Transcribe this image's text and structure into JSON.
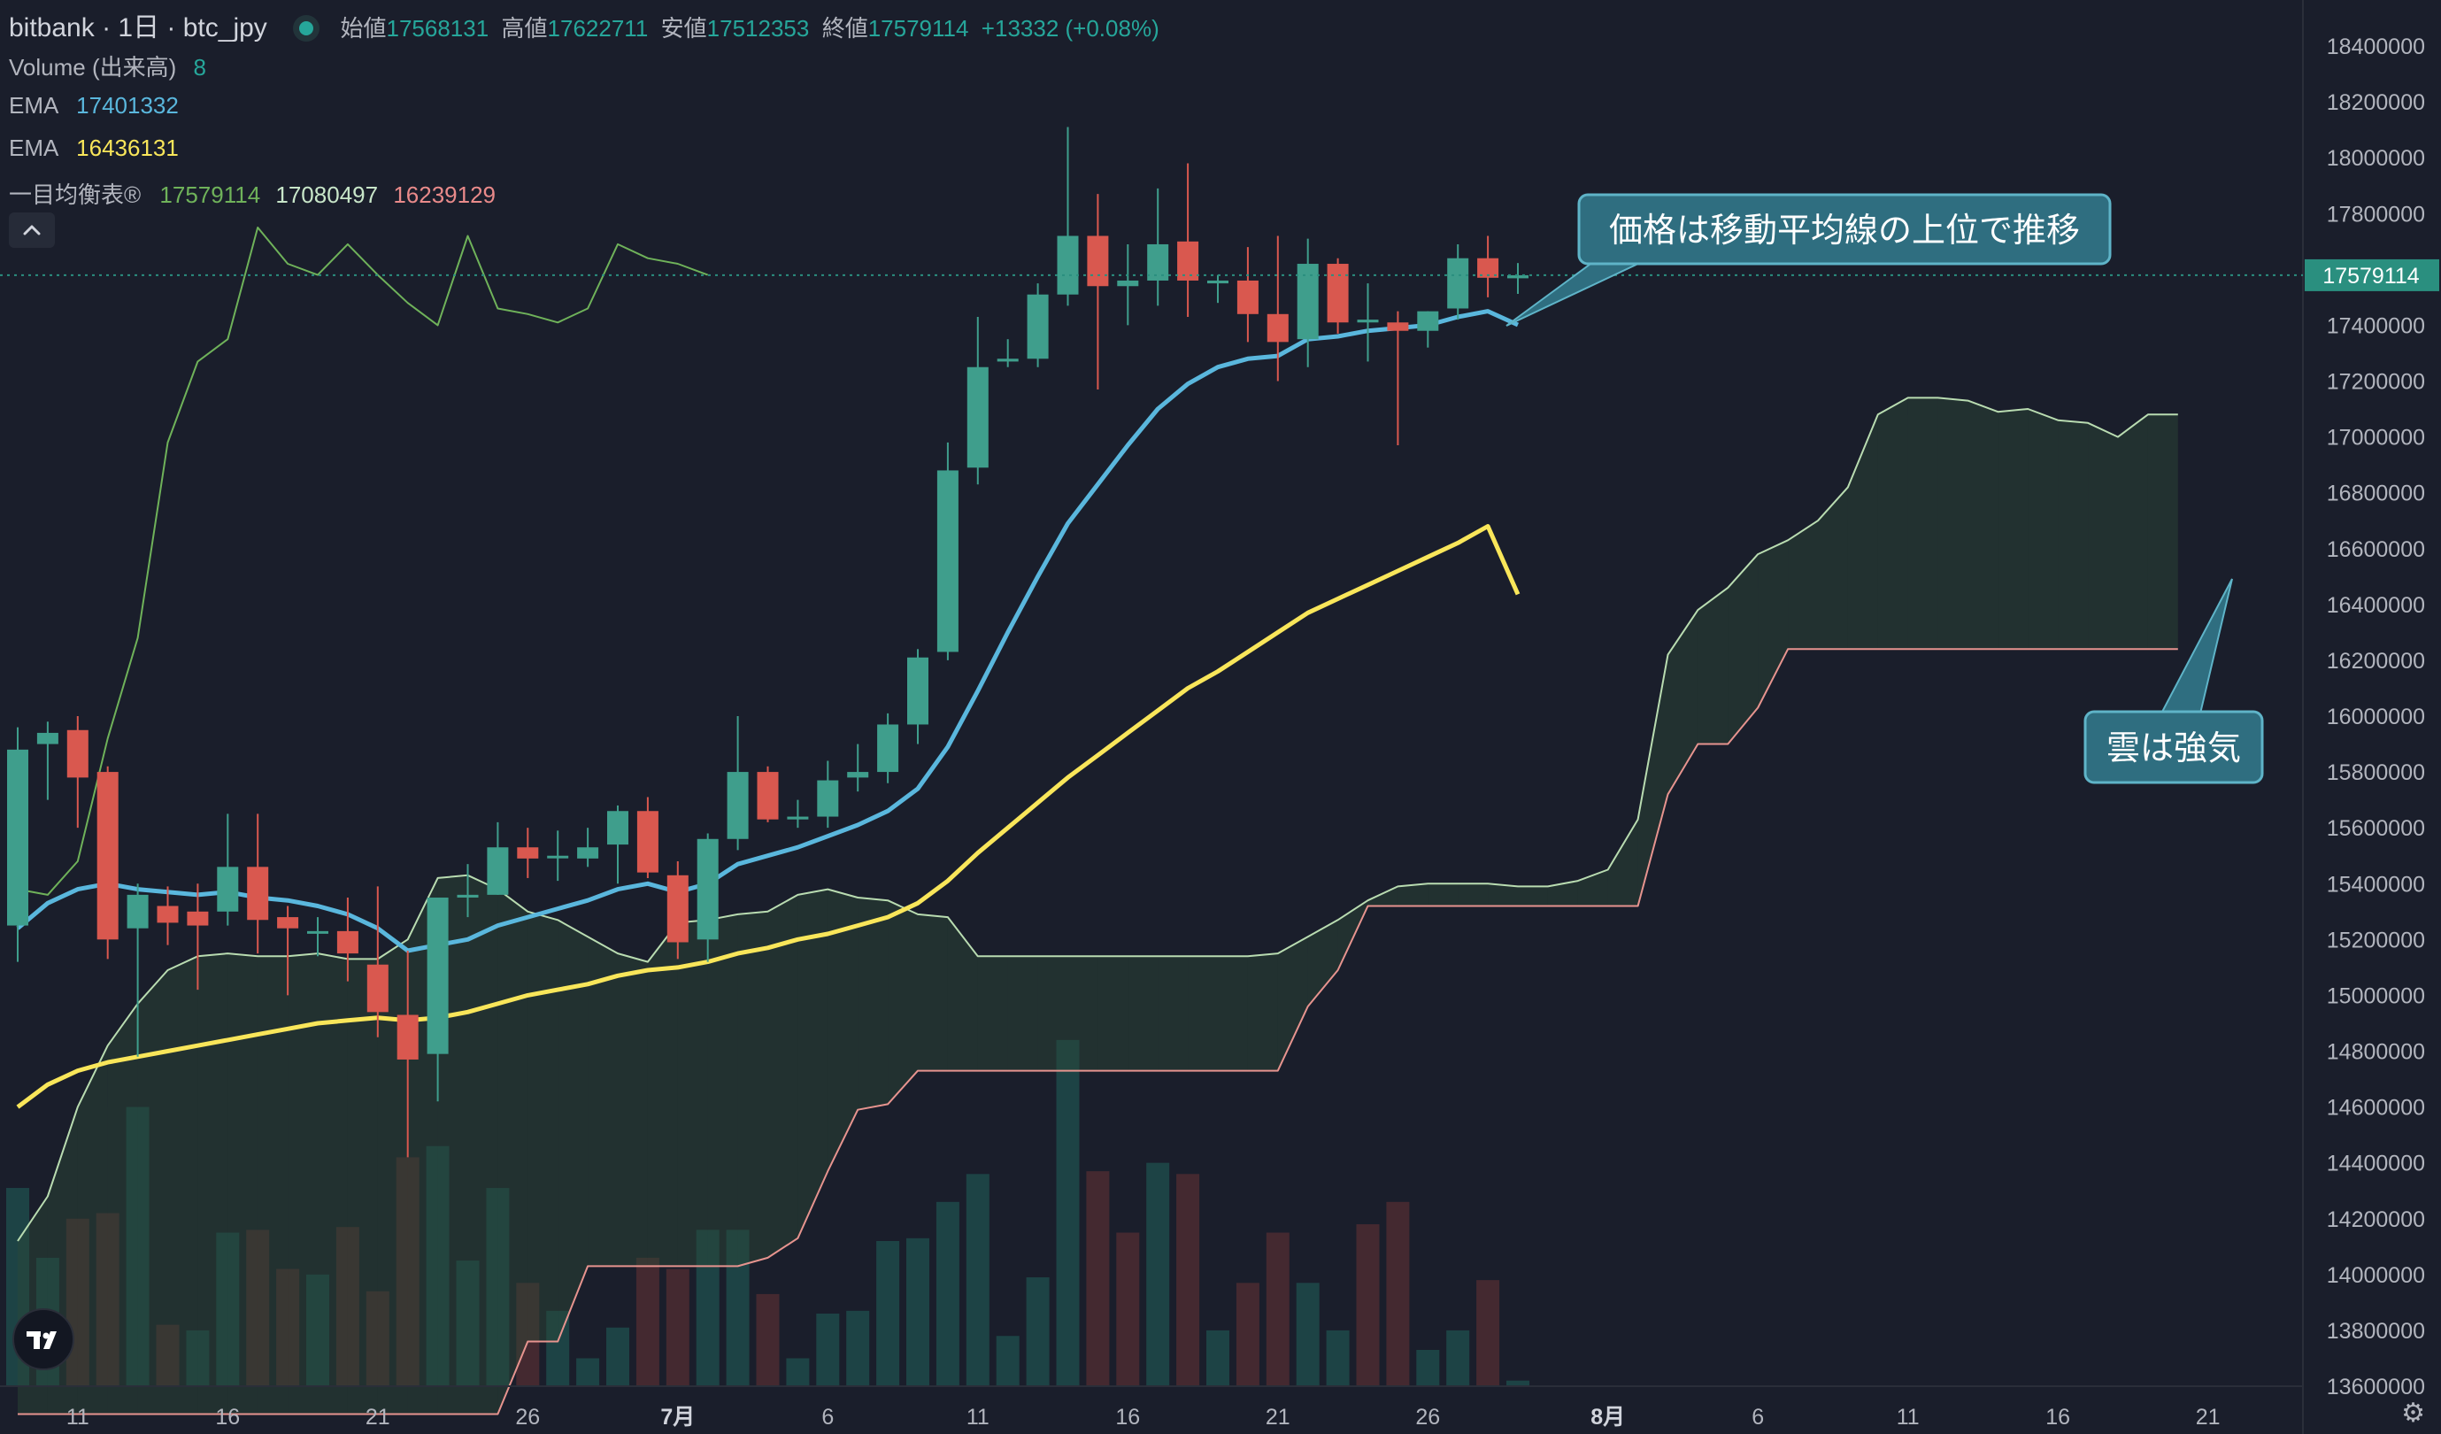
{
  "header": {
    "symbol_title": "bitbank · 1日 · btc_jpy",
    "status_dot_color": "#26a69a",
    "ohlc": [
      {
        "label": "始値",
        "value": "17568131"
      },
      {
        "label": "高値",
        "value": "17622711"
      },
      {
        "label": "安値",
        "value": "17512353"
      },
      {
        "label": "終値",
        "value": "17579114"
      }
    ],
    "change": "+13332 (+0.08%)"
  },
  "indicators": {
    "volume": {
      "label": "Volume (出来高)",
      "value": "8"
    },
    "ema1": {
      "label": "EMA",
      "value": "17401332",
      "color": "#5ab7dd"
    },
    "ema2": {
      "label": "EMA",
      "value": "16436131",
      "color": "#f9e65a"
    },
    "ichimoku": {
      "label": "一目均衡表®",
      "values": [
        "17579114",
        "17080497",
        "16239129"
      ],
      "colors": [
        "#6fb25a",
        "#c8e6c9",
        "#e98a8a"
      ]
    }
  },
  "annotations": [
    {
      "text": "価格は移動平均線の上位で推移"
    },
    {
      "text": "雲は強気"
    }
  ],
  "colors": {
    "background": "#1a1e2b",
    "up": "#3f9e8c",
    "down": "#d9584f",
    "ema1": "#5ab7dd",
    "ema2": "#f9e65a",
    "lagging_span": "#6fb25a",
    "span_a": "#b9dcb1",
    "span_b": "#e7948f",
    "callout_bg": "#2f6e80",
    "callout_border": "#5fb4c8",
    "price_tag": "#2a8f7f"
  },
  "chart_data": {
    "type": "candlestick",
    "y_ticks": [
      13600000,
      13800000,
      14000000,
      14200000,
      14400000,
      14600000,
      14800000,
      15000000,
      15200000,
      15400000,
      15600000,
      15800000,
      16000000,
      16200000,
      16400000,
      16600000,
      16800000,
      17000000,
      17200000,
      17400000,
      17600000,
      17800000,
      18000000,
      18200000,
      18400000
    ],
    "last_price_label": "17579114",
    "x_tick_labels": [
      {
        "label": "11",
        "bar": 2
      },
      {
        "label": "16",
        "bar": 7
      },
      {
        "label": "21",
        "bar": 12
      },
      {
        "label": "26",
        "bar": 17
      },
      {
        "label": "7月",
        "bar": 22
      },
      {
        "label": "6",
        "bar": 27
      },
      {
        "label": "11",
        "bar": 32
      },
      {
        "label": "16",
        "bar": 37
      },
      {
        "label": "21",
        "bar": 42
      },
      {
        "label": "26",
        "bar": 47
      },
      {
        "label": "8月",
        "bar": 53
      },
      {
        "label": "6",
        "bar": 58
      },
      {
        "label": "11",
        "bar": 63
      },
      {
        "label": "16",
        "bar": 68
      },
      {
        "label": "21",
        "bar": 73
      }
    ],
    "ohlc": [
      [
        15250000,
        15960000,
        15120000,
        15880000
      ],
      [
        15900000,
        15980000,
        15700000,
        15940000
      ],
      [
        15950000,
        16000000,
        15600000,
        15780000
      ],
      [
        15800000,
        15820000,
        15130000,
        15200000
      ],
      [
        15240000,
        15400000,
        14780000,
        15360000
      ],
      [
        15320000,
        15390000,
        15180000,
        15260000
      ],
      [
        15300000,
        15400000,
        15020000,
        15250000
      ],
      [
        15300000,
        15650000,
        15250000,
        15460000
      ],
      [
        15460000,
        15650000,
        15150000,
        15270000
      ],
      [
        15280000,
        15320000,
        15000000,
        15240000
      ],
      [
        15230000,
        15280000,
        15140000,
        15230000
      ],
      [
        15230000,
        15350000,
        15050000,
        15150000
      ],
      [
        15110000,
        15390000,
        14850000,
        14940000
      ],
      [
        14930000,
        15160000,
        14420000,
        14770000
      ],
      [
        14790000,
        15350000,
        14620000,
        15350000
      ],
      [
        15350000,
        15470000,
        15280000,
        15360000
      ],
      [
        15360000,
        15620000,
        15360000,
        15530000
      ],
      [
        15530000,
        15600000,
        15420000,
        15490000
      ],
      [
        15500000,
        15590000,
        15410000,
        15500000
      ],
      [
        15490000,
        15600000,
        15460000,
        15530000
      ],
      [
        15540000,
        15680000,
        15400000,
        15660000
      ],
      [
        15660000,
        15710000,
        15420000,
        15440000
      ],
      [
        15430000,
        15480000,
        15130000,
        15190000
      ],
      [
        15200000,
        15580000,
        15120000,
        15560000
      ],
      [
        15560000,
        16000000,
        15520000,
        15800000
      ],
      [
        15800000,
        15820000,
        15620000,
        15630000
      ],
      [
        15630000,
        15700000,
        15600000,
        15640000
      ],
      [
        15640000,
        15840000,
        15600000,
        15770000
      ],
      [
        15780000,
        15900000,
        15730000,
        15800000
      ],
      [
        15800000,
        16010000,
        15760000,
        15970000
      ],
      [
        15970000,
        16240000,
        15900000,
        16210000
      ],
      [
        16230000,
        16980000,
        16200000,
        16880000
      ],
      [
        16890000,
        17430000,
        16830000,
        17250000
      ],
      [
        17270000,
        17350000,
        17250000,
        17280000
      ],
      [
        17280000,
        17550000,
        17250000,
        17510000
      ],
      [
        17510000,
        18110000,
        17470000,
        17720000
      ],
      [
        17720000,
        17870000,
        17170000,
        17540000
      ],
      [
        17540000,
        17690000,
        17400000,
        17560000
      ],
      [
        17560000,
        17890000,
        17470000,
        17690000
      ],
      [
        17700000,
        17980000,
        17430000,
        17560000
      ],
      [
        17550000,
        17580000,
        17480000,
        17560000
      ],
      [
        17560000,
        17680000,
        17340000,
        17440000
      ],
      [
        17440000,
        17720000,
        17200000,
        17340000
      ],
      [
        17350000,
        17710000,
        17250000,
        17620000
      ],
      [
        17620000,
        17640000,
        17370000,
        17410000
      ],
      [
        17410000,
        17550000,
        17270000,
        17420000
      ],
      [
        17410000,
        17450000,
        16970000,
        17380000
      ],
      [
        17380000,
        17450000,
        17320000,
        17450000
      ],
      [
        17460000,
        17690000,
        17420000,
        17640000
      ],
      [
        17640000,
        17720000,
        17500000,
        17570000
      ],
      [
        17568131,
        17622711,
        17512353,
        17579114
      ]
    ],
    "volume": [
      [
        13600000,
        14310000,
        "up"
      ],
      [
        13600000,
        14060000,
        "up"
      ],
      [
        13600000,
        14200000,
        "down"
      ],
      [
        13600000,
        14220000,
        "down"
      ],
      [
        13600000,
        14600000,
        "up"
      ],
      [
        13600000,
        13820000,
        "down"
      ],
      [
        13600000,
        13800000,
        "up"
      ],
      [
        13600000,
        14150000,
        "up"
      ],
      [
        13600000,
        14160000,
        "down"
      ],
      [
        13600000,
        14020000,
        "down"
      ],
      [
        13600000,
        14000000,
        "up"
      ],
      [
        13600000,
        14170000,
        "down"
      ],
      [
        13600000,
        13940000,
        "down"
      ],
      [
        13600000,
        14420000,
        "down"
      ],
      [
        13600000,
        14460000,
        "up"
      ],
      [
        13600000,
        14050000,
        "up"
      ],
      [
        13600000,
        14310000,
        "up"
      ],
      [
        13600000,
        13970000,
        "down"
      ],
      [
        13600000,
        13870000,
        "up"
      ],
      [
        13600000,
        13700000,
        "up"
      ],
      [
        13600000,
        13810000,
        "up"
      ],
      [
        13600000,
        14060000,
        "down"
      ],
      [
        13600000,
        14020000,
        "down"
      ],
      [
        13600000,
        14160000,
        "up"
      ],
      [
        13600000,
        14160000,
        "up"
      ],
      [
        13600000,
        13930000,
        "down"
      ],
      [
        13600000,
        13700000,
        "up"
      ],
      [
        13600000,
        13860000,
        "up"
      ],
      [
        13600000,
        13870000,
        "up"
      ],
      [
        13600000,
        14120000,
        "up"
      ],
      [
        13600000,
        14130000,
        "up"
      ],
      [
        13600000,
        14260000,
        "up"
      ],
      [
        13600000,
        14360000,
        "up"
      ],
      [
        13600000,
        13780000,
        "up"
      ],
      [
        13600000,
        13990000,
        "up"
      ],
      [
        13600000,
        14840000,
        "up"
      ],
      [
        13600000,
        14370000,
        "down"
      ],
      [
        13600000,
        14150000,
        "down"
      ],
      [
        13600000,
        14400000,
        "up"
      ],
      [
        13600000,
        14360000,
        "down"
      ],
      [
        13600000,
        13800000,
        "up"
      ],
      [
        13600000,
        13970000,
        "down"
      ],
      [
        13600000,
        14150000,
        "down"
      ],
      [
        13600000,
        13970000,
        "up"
      ],
      [
        13600000,
        13800000,
        "up"
      ],
      [
        13600000,
        14180000,
        "down"
      ],
      [
        13600000,
        14260000,
        "down"
      ],
      [
        13600000,
        13730000,
        "up"
      ],
      [
        13600000,
        13800000,
        "up"
      ],
      [
        13600000,
        13980000,
        "down"
      ],
      [
        13600000,
        13620000,
        "up"
      ]
    ],
    "ema_fast": [
      15240000,
      15330000,
      15380000,
      15400000,
      15380000,
      15370000,
      15360000,
      15370000,
      15350000,
      15340000,
      15320000,
      15290000,
      15240000,
      15160000,
      15180000,
      15200000,
      15250000,
      15280000,
      15310000,
      15340000,
      15380000,
      15400000,
      15370000,
      15400000,
      15470000,
      15500000,
      15530000,
      15570000,
      15610000,
      15660000,
      15740000,
      15890000,
      16090000,
      16300000,
      16500000,
      16690000,
      16830000,
      16970000,
      17100000,
      17190000,
      17250000,
      17280000,
      17290000,
      17350000,
      17360000,
      17380000,
      17390000,
      17400000,
      17430000,
      17450000,
      17401332
    ],
    "ema_slow": [
      14600000,
      14680000,
      14730000,
      14760000,
      14780000,
      14800000,
      14820000,
      14840000,
      14860000,
      14880000,
      14900000,
      14910000,
      14920000,
      14910000,
      14920000,
      14940000,
      14970000,
      15000000,
      15020000,
      15040000,
      15070000,
      15090000,
      15100000,
      15120000,
      15150000,
      15170000,
      15200000,
      15220000,
      15250000,
      15280000,
      15330000,
      15410000,
      15510000,
      15600000,
      15690000,
      15780000,
      15860000,
      15940000,
      16020000,
      16100000,
      16160000,
      16230000,
      16300000,
      16370000,
      16420000,
      16470000,
      16520000,
      16570000,
      16620000,
      16680000,
      16436131
    ],
    "lagging_span": {
      "offset": -26,
      "values": [
        15380000,
        15360000,
        15480000,
        15920000,
        16280000,
        16980000,
        17270000,
        17350000,
        17750000,
        17620000,
        17580000,
        17690000,
        17580000,
        17480000,
        17400000,
        17720000,
        17460000,
        17440000,
        17410000,
        17460000,
        17690000,
        17640000,
        17620000,
        17580000
      ]
    },
    "span_a": [
      14120000,
      14280000,
      14600000,
      14820000,
      14970000,
      15090000,
      15140000,
      15150000,
      15140000,
      15140000,
      15150000,
      15130000,
      15130000,
      15200000,
      15420000,
      15430000,
      15380000,
      15300000,
      15270000,
      15210000,
      15150000,
      15120000,
      15260000,
      15270000,
      15290000,
      15300000,
      15360000,
      15380000,
      15350000,
      15340000,
      15290000,
      15280000,
      15140000,
      15140000,
      15140000,
      15140000,
      15140000,
      15140000,
      15140000,
      15140000,
      15140000,
      15140000,
      15150000,
      15210000,
      15270000,
      15340000,
      15390000,
      15400000,
      15400000,
      15400000,
      15390000,
      15390000,
      15410000,
      15450000,
      15630000,
      16220000,
      16380000,
      16460000,
      16580000,
      16630000,
      16700000,
      16820000,
      17080000,
      17140000,
      17140000,
      17130000,
      17090000,
      17100000,
      17060000,
      17050000,
      17000000,
      17080000,
      17080000
    ],
    "span_b": [
      13500000,
      13500000,
      13500000,
      13500000,
      13500000,
      13500000,
      13500000,
      13500000,
      13500000,
      13500000,
      13500000,
      13500000,
      13500000,
      13500000,
      13500000,
      13500000,
      13500000,
      13760000,
      13760000,
      14030000,
      14030000,
      14030000,
      14030000,
      14030000,
      14030000,
      14060000,
      14130000,
      14370000,
      14590000,
      14610000,
      14730000,
      14730000,
      14730000,
      14730000,
      14730000,
      14730000,
      14730000,
      14730000,
      14730000,
      14730000,
      14730000,
      14730000,
      14730000,
      14960000,
      15090000,
      15320000,
      15320000,
      15320000,
      15320000,
      15320000,
      15320000,
      15320000,
      15320000,
      15320000,
      15320000,
      15720000,
      15900000,
      15900000,
      16030000,
      16240000,
      16240000,
      16240000,
      16240000,
      16240000,
      16240000,
      16240000,
      16240000,
      16240000,
      16240000,
      16240000,
      16240000,
      16240000,
      16240000
    ]
  }
}
